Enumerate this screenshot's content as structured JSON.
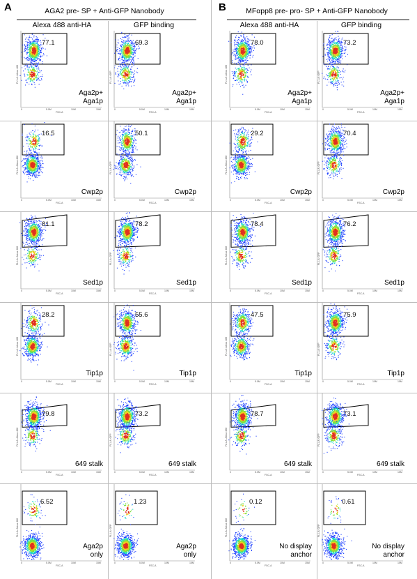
{
  "panels": [
    {
      "letter": "A",
      "title": "AGA2 pre- SP + Anti-GFP Nanobody"
    },
    {
      "letter": "B",
      "title": "MFαpp8 pre- pro- SP + Anti-GFP Nanobody"
    }
  ],
  "column_headers": [
    "Alexa 488 anti-HA",
    "GFP binding",
    "Alexa 488 anti-HA",
    "GFP binding"
  ],
  "axes": {
    "x_label": "FSC-A",
    "y_label_ha": "FL1-A::Alexa 488",
    "y_label_gfp": "FL1-A::GFP",
    "x_ticks": [
      "0",
      "5.0M",
      "10M",
      "15M"
    ]
  },
  "colors": {
    "gate": "#000000",
    "density_low": "#1a3cff",
    "density_mid": "#12d8c8",
    "density_high": "#e03020",
    "divider": "#bbbbbb"
  },
  "chart_data": {
    "type": "scatter",
    "plot_kind": "flow cytometry density dot plots with gate percentages",
    "rows": [
      {
        "construct_lines": [
          "Aga2p+",
          "Aga1p"
        ],
        "gates": [
          "77.1",
          "69.3",
          "78.0",
          "73.2"
        ]
      },
      {
        "construct_lines": [
          "Cwp2p"
        ],
        "gates": [
          "16.5",
          "50.1",
          "29.2",
          "70.4"
        ]
      },
      {
        "construct_lines": [
          "Sed1p"
        ],
        "gates": [
          "81.1",
          "78.2",
          "78.4",
          "76.2"
        ]
      },
      {
        "construct_lines": [
          "Tip1p"
        ],
        "gates": [
          "28.2",
          "55.6",
          "47.5",
          "75.9"
        ]
      },
      {
        "construct_lines": [
          "649 stalk"
        ],
        "gates": [
          "79.8",
          "73.2",
          "78.7",
          "73.1"
        ]
      },
      {
        "construct_lines_AB": [
          [
            "Aga2p",
            "only"
          ],
          [
            "No display",
            "anchor"
          ]
        ],
        "gates": [
          "6.52",
          "1.23",
          "0.12",
          "0.61"
        ]
      }
    ]
  }
}
